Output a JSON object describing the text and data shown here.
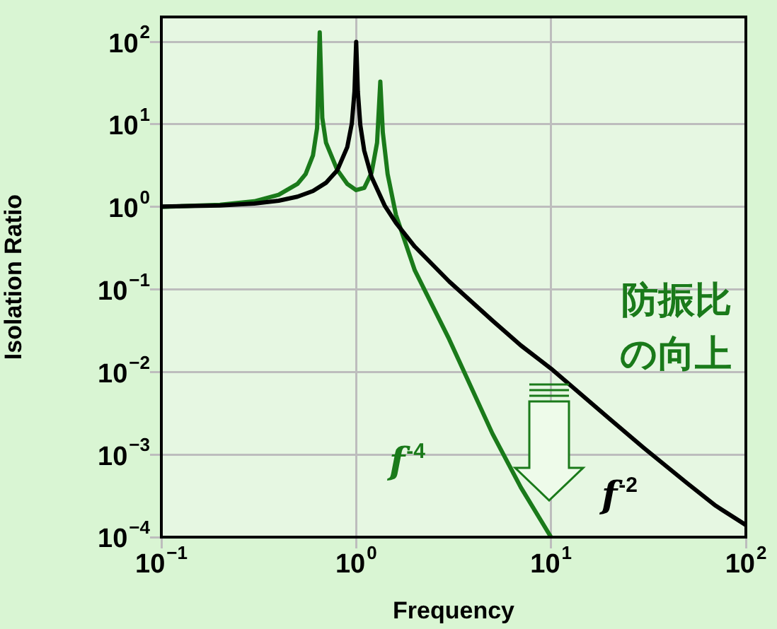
{
  "chart_data": {
    "type": "line",
    "xlabel": "Frequency",
    "ylabel": "Isolation Ratio",
    "log": "xy",
    "grid": true,
    "marker": "none",
    "line_style": "solid",
    "xlim": [
      0.1,
      100
    ],
    "ylim": [
      0.0001,
      200
    ],
    "xticks": [
      {
        "value": 0.1,
        "label": "10$^{−1}$"
      },
      {
        "value": 1,
        "label": "10$^{0}$"
      },
      {
        "value": 10,
        "label": "10$^{1}$"
      },
      {
        "value": 100,
        "label": "10$^{2}$"
      }
    ],
    "yticks": [
      {
        "value": 0.0001,
        "label": "10$^{−4}$"
      },
      {
        "value": 0.001,
        "label": "10$^{−3}$"
      },
      {
        "value": 0.01,
        "label": "10$^{−2}$"
      },
      {
        "value": 0.1,
        "label": "10$^{−1}$"
      },
      {
        "value": 1,
        "label": "10$^{0}$"
      },
      {
        "value": 10,
        "label": "10$^{1}$"
      },
      {
        "value": 100,
        "label": "10$^{2}$"
      }
    ],
    "series": [
      {
        "color": "#000000",
        "x": [
          0.1,
          0.2,
          0.3,
          0.4,
          0.5,
          0.6,
          0.7,
          0.8,
          0.9,
          0.95,
          0.98,
          1.0,
          1.02,
          1.05,
          1.1,
          1.2,
          1.4,
          1.6,
          2,
          3,
          5,
          7,
          10,
          20,
          30,
          50,
          70,
          100
        ],
        "values": [
          1.01,
          1.04,
          1.1,
          1.19,
          1.33,
          1.56,
          1.96,
          2.78,
          5.3,
          10.3,
          25,
          100,
          25,
          9.8,
          4.8,
          2.3,
          1.04,
          0.64,
          0.33,
          0.125,
          0.042,
          0.021,
          0.011,
          0.0027,
          0.0012,
          0.00045,
          0.00024,
          0.00014
        ]
      },
      {
        "color": "#1a7a1a",
        "x": [
          0.1,
          0.2,
          0.3,
          0.4,
          0.5,
          0.55,
          0.6,
          0.63,
          0.65,
          0.67,
          0.7,
          0.8,
          0.9,
          1.0,
          1.1,
          1.2,
          1.28,
          1.33,
          1.37,
          1.45,
          1.6,
          2,
          3,
          5,
          7,
          10
        ],
        "values": [
          1.0,
          1.06,
          1.17,
          1.4,
          1.9,
          2.5,
          4.2,
          9,
          130,
          12,
          6,
          2.8,
          1.9,
          1.6,
          1.7,
          2.6,
          6,
          33,
          8,
          2.5,
          0.8,
          0.17,
          0.025,
          0.0018,
          0.0004,
          0.0001
        ]
      }
    ],
    "annotations": [
      "防振比",
      "の向上",
      "f$^{-4}$",
      "f$^{-2}$"
    ]
  }
}
